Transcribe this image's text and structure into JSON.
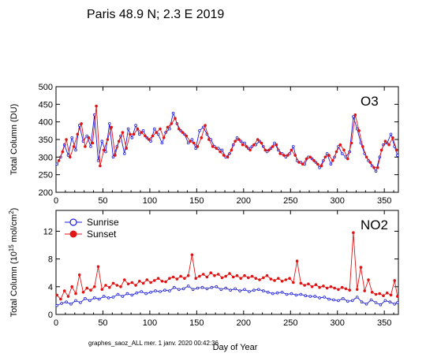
{
  "title": "Paris  48.9 N; 2.3 E   2019",
  "footer": "graphes_saoz_ALL  mer. 1 janv. 2020 00:42:36",
  "colors": {
    "sunrise": "#1a1adc",
    "sunset": "#e01515",
    "frame": "#000000",
    "text": "#000000"
  },
  "chart_data": [
    {
      "type": "line",
      "panel_label": "O3",
      "ylabel": "Total Column  (DU)",
      "xlim": [
        0,
        365
      ],
      "ylim": [
        200,
        500
      ],
      "xticks": [
        0,
        50,
        100,
        150,
        200,
        250,
        300,
        350
      ],
      "yticks": [
        200,
        250,
        300,
        350,
        400,
        450,
        500
      ],
      "grid": false,
      "legend": "none",
      "series": [
        {
          "key": "sunrise",
          "x": [
            1,
            5,
            9,
            13,
            17,
            21,
            25,
            29,
            33,
            37,
            41,
            45,
            49,
            53,
            57,
            61,
            65,
            69,
            73,
            77,
            81,
            85,
            89,
            93,
            97,
            101,
            105,
            109,
            113,
            117,
            121,
            125,
            129,
            133,
            137,
            141,
            145,
            149,
            153,
            157,
            161,
            165,
            169,
            173,
            177,
            181,
            185,
            189,
            193,
            197,
            201,
            205,
            209,
            213,
            217,
            221,
            225,
            229,
            233,
            237,
            241,
            245,
            249,
            253,
            257,
            261,
            265,
            269,
            273,
            277,
            281,
            285,
            289,
            293,
            297,
            301,
            305,
            309,
            313,
            317,
            321,
            325,
            329,
            333,
            337,
            341,
            345,
            349,
            353,
            357,
            361,
            364
          ],
          "y": [
            280,
            300,
            335,
            305,
            355,
            320,
            390,
            345,
            360,
            330,
            420,
            290,
            345,
            315,
            395,
            300,
            330,
            360,
            310,
            380,
            355,
            390,
            365,
            375,
            355,
            345,
            380,
            365,
            340,
            370,
            380,
            425,
            395,
            375,
            365,
            340,
            350,
            325,
            375,
            385,
            365,
            350,
            330,
            325,
            320,
            300,
            310,
            335,
            355,
            345,
            340,
            325,
            330,
            335,
            345,
            330,
            315,
            325,
            340,
            320,
            310,
            300,
            310,
            330,
            290,
            285,
            280,
            300,
            295,
            285,
            270,
            290,
            310,
            280,
            300,
            330,
            310,
            300,
            315,
            415,
            380,
            340,
            310,
            290,
            275,
            260,
            300,
            335,
            340,
            365,
            330,
            305
          ]
        },
        {
          "key": "sunset",
          "x": [
            3,
            7,
            11,
            15,
            19,
            23,
            27,
            31,
            35,
            39,
            43,
            47,
            51,
            55,
            59,
            63,
            67,
            71,
            75,
            79,
            83,
            87,
            91,
            95,
            99,
            103,
            107,
            111,
            115,
            119,
            123,
            127,
            131,
            135,
            139,
            143,
            147,
            151,
            155,
            159,
            163,
            167,
            171,
            175,
            179,
            183,
            187,
            191,
            195,
            199,
            203,
            207,
            211,
            215,
            219,
            223,
            227,
            231,
            235,
            239,
            243,
            247,
            251,
            255,
            259,
            263,
            267,
            271,
            275,
            279,
            283,
            287,
            291,
            295,
            299,
            303,
            307,
            311,
            315,
            319,
            323,
            327,
            331,
            335,
            339,
            343,
            347,
            351,
            355,
            359,
            363
          ],
          "y": [
            290,
            315,
            350,
            300,
            330,
            365,
            395,
            330,
            355,
            340,
            445,
            275,
            320,
            350,
            385,
            305,
            345,
            370,
            325,
            365,
            365,
            380,
            370,
            360,
            350,
            360,
            370,
            380,
            355,
            385,
            395,
            410,
            380,
            370,
            360,
            345,
            340,
            330,
            355,
            390,
            350,
            330,
            325,
            315,
            305,
            300,
            320,
            345,
            350,
            335,
            330,
            320,
            335,
            350,
            340,
            320,
            320,
            330,
            335,
            310,
            305,
            305,
            320,
            305,
            285,
            280,
            295,
            300,
            290,
            280,
            275,
            300,
            305,
            290,
            315,
            335,
            320,
            295,
            340,
            420,
            375,
            330,
            300,
            285,
            270,
            270,
            320,
            345,
            335,
            355,
            320
          ]
        }
      ]
    },
    {
      "type": "line",
      "panel_label": "NO2",
      "ylabel": "Total Column (10",
      "ylabel_sup": "15",
      "ylabel_tail": " mol/cm",
      "ylabel_unit_sup": "2",
      "ylabel_close": ")",
      "xlabel": "Day of Year",
      "xlim": [
        0,
        365
      ],
      "ylim": [
        0,
        15
      ],
      "xticks": [
        0,
        50,
        100,
        150,
        200,
        250,
        300,
        350
      ],
      "yticks": [
        0,
        4,
        8,
        12
      ],
      "grid": false,
      "legend": "top-left",
      "series": [
        {
          "key": "sunrise",
          "name": "Sunrise",
          "x": [
            1,
            6,
            11,
            16,
            21,
            26,
            31,
            36,
            41,
            46,
            51,
            56,
            61,
            66,
            71,
            76,
            81,
            86,
            91,
            96,
            101,
            106,
            111,
            116,
            121,
            126,
            131,
            136,
            141,
            146,
            151,
            156,
            161,
            166,
            171,
            176,
            181,
            186,
            191,
            196,
            201,
            206,
            211,
            216,
            221,
            226,
            231,
            236,
            241,
            246,
            251,
            256,
            261,
            266,
            271,
            276,
            281,
            286,
            291,
            296,
            301,
            306,
            311,
            316,
            321,
            326,
            331,
            336,
            341,
            346,
            351,
            356,
            361,
            364
          ],
          "y": [
            1.3,
            1.6,
            1.8,
            1.5,
            2.0,
            1.7,
            2.3,
            2.0,
            2.4,
            2.2,
            2.6,
            2.4,
            2.5,
            2.9,
            2.6,
            3.0,
            2.8,
            3.1,
            3.3,
            3.0,
            3.2,
            3.4,
            3.3,
            3.5,
            3.4,
            3.9,
            3.6,
            3.7,
            4.1,
            3.6,
            3.8,
            3.9,
            3.7,
            3.9,
            4.0,
            3.6,
            3.8,
            3.5,
            3.7,
            3.4,
            3.6,
            3.3,
            3.5,
            3.6,
            3.4,
            3.2,
            3.0,
            3.1,
            3.2,
            2.9,
            3.0,
            2.8,
            2.9,
            2.7,
            2.6,
            2.6,
            2.4,
            2.5,
            2.2,
            2.1,
            2.0,
            2.3,
            1.9,
            2.0,
            2.5,
            1.8,
            1.5,
            2.1,
            1.7,
            1.4,
            2.0,
            1.8,
            1.5,
            1.7
          ]
        },
        {
          "key": "sunset",
          "name": "Sunset",
          "x": [
            1,
            5,
            9,
            13,
            17,
            21,
            25,
            29,
            33,
            37,
            41,
            45,
            49,
            53,
            57,
            61,
            65,
            69,
            73,
            77,
            81,
            85,
            89,
            93,
            97,
            101,
            105,
            109,
            113,
            117,
            121,
            125,
            129,
            133,
            137,
            141,
            145,
            149,
            153,
            157,
            161,
            165,
            169,
            173,
            177,
            181,
            185,
            189,
            193,
            197,
            201,
            205,
            209,
            213,
            217,
            221,
            225,
            229,
            233,
            237,
            241,
            245,
            249,
            253,
            257,
            261,
            265,
            269,
            273,
            277,
            281,
            285,
            289,
            293,
            297,
            301,
            305,
            309,
            313,
            317,
            321,
            325,
            329,
            333,
            337,
            341,
            345,
            349,
            353,
            357,
            361,
            364
          ],
          "y": [
            2.8,
            2.2,
            3.4,
            2.6,
            4.0,
            3.0,
            5.7,
            3.2,
            3.8,
            3.5,
            4.0,
            6.9,
            3.6,
            4.2,
            3.9,
            4.5,
            4.2,
            4.0,
            5.0,
            4.4,
            4.6,
            4.2,
            4.8,
            4.5,
            5.0,
            4.6,
            4.9,
            5.2,
            4.8,
            4.7,
            5.2,
            5.4,
            5.1,
            5.5,
            5.2,
            5.6,
            8.6,
            5.2,
            5.5,
            5.8,
            5.4,
            6.0,
            5.6,
            5.8,
            5.3,
            5.5,
            5.9,
            5.4,
            5.6,
            5.2,
            5.6,
            5.3,
            5.5,
            5.2,
            5.0,
            5.3,
            5.6,
            5.1,
            4.9,
            5.2,
            4.8,
            5.0,
            5.2,
            4.6,
            7.7,
            4.5,
            4.2,
            4.4,
            4.0,
            4.3,
            3.9,
            4.1,
            3.8,
            4.0,
            3.8,
            3.6,
            3.9,
            3.7,
            3.5,
            11.8,
            3.6,
            6.8,
            3.4,
            5.0,
            3.2,
            2.9,
            3.0,
            2.7,
            3.1,
            2.8,
            4.9,
            2.6
          ]
        }
      ]
    }
  ]
}
